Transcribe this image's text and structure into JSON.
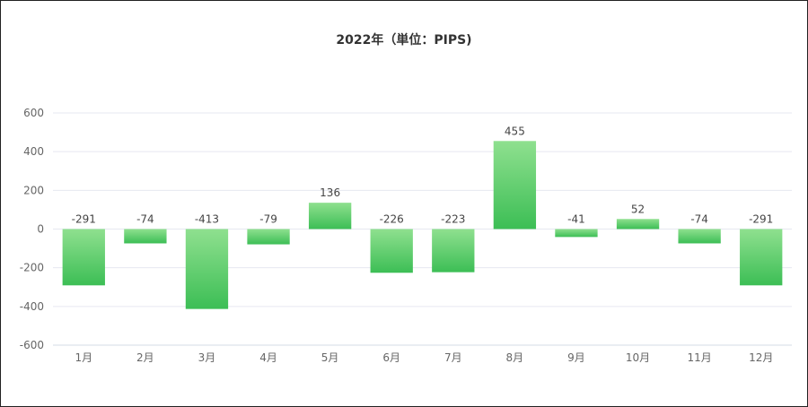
{
  "chart_data": {
    "type": "bar",
    "title": "2022年（単位：PIPS)",
    "categories": [
      "1月",
      "2月",
      "3月",
      "4月",
      "5月",
      "6月",
      "7月",
      "8月",
      "9月",
      "10月",
      "11月",
      "12月"
    ],
    "values": [
      -291,
      -74,
      -413,
      -79,
      136,
      -226,
      -223,
      455,
      -41,
      52,
      -74,
      -291
    ],
    "ylim": [
      -600,
      600
    ],
    "yticks": [
      600,
      400,
      200,
      0,
      -200,
      -400,
      -600
    ],
    "grid": true,
    "bar_color_top": "#8fe08f",
    "bar_color_bottom": "#3cbe55"
  }
}
